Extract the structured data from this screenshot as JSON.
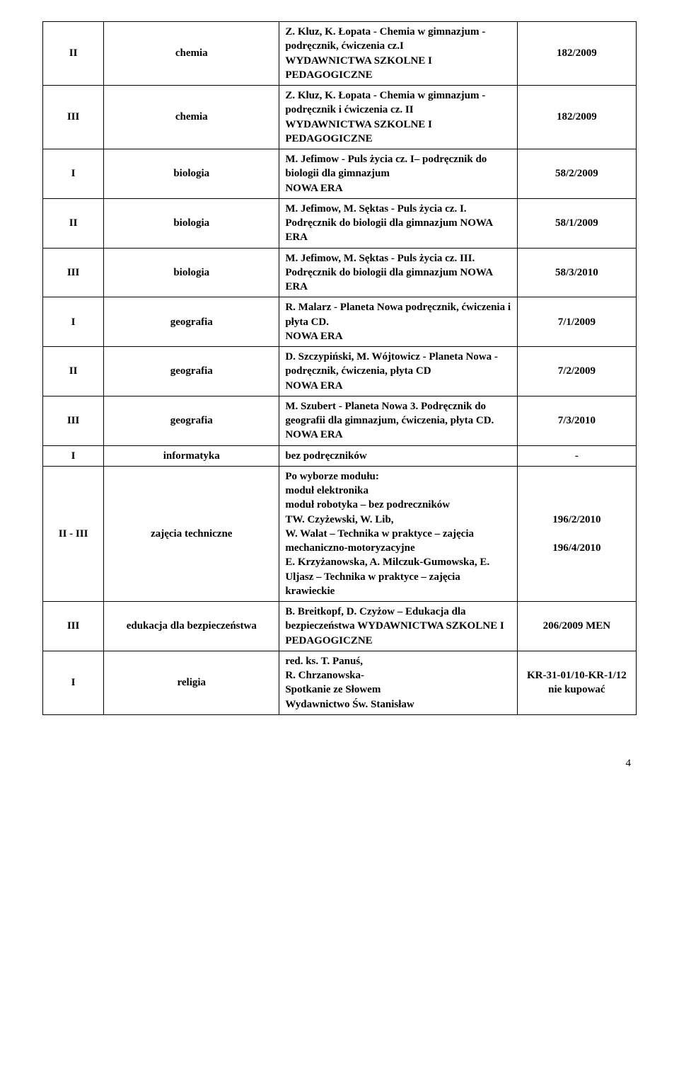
{
  "rows": [
    {
      "c1": "II",
      "c2": "chemia",
      "c3": "Z. Kluz, K. Łopata - Chemia w gimnazjum - podręcznik, ćwiczenia cz.I\nWYDAWNICTWA SZKOLNE I PEDAGOGICZNE",
      "c4": "182/2009"
    },
    {
      "c1": "III",
      "c2": "chemia",
      "c3": "Z. Kluz, K. Łopata - Chemia w gimnazjum - podręcznik i ćwiczenia cz. II\nWYDAWNICTWA SZKOLNE I PEDAGOGICZNE",
      "c4": "182/2009"
    },
    {
      "c1": "I",
      "c2": "biologia",
      "c3": "M. Jefimow - Puls życia cz. I– podręcznik do biologii dla gimnazjum\nNOWA ERA",
      "c4": "58/2/2009"
    },
    {
      "c1": "II",
      "c2": "biologia",
      "c3": "M. Jefimow, M. Sęktas - Puls życia cz. I. Podręcznik do biologii dla gimnazjum NOWA ERA",
      "c4": "58/1/2009"
    },
    {
      "c1": "III",
      "c2": "biologia",
      "c3": "M. Jefimow, M. Sęktas - Puls życia cz. III. Podręcznik do biologii dla gimnazjum NOWA ERA",
      "c4": "58/3/2010"
    },
    {
      "c1": "I",
      "c2": "geografia",
      "c3": "R. Malarz - Planeta Nowa podręcznik, ćwiczenia i płyta CD.\nNOWA ERA",
      "c4": "7/1/2009"
    },
    {
      "c1": "II",
      "c2": "geografia",
      "c3": "D. Szczypiński, M. Wójtowicz - Planeta Nowa - podręcznik, ćwiczenia, płyta CD\nNOWA ERA",
      "c4": "7/2/2009"
    },
    {
      "c1": "III",
      "c2": "geografia",
      "c3": "M. Szubert - Planeta Nowa 3. Podręcznik do geografii dla gimnazjum, ćwiczenia, płyta CD.\nNOWA ERA",
      "c4": "7/3/2010"
    },
    {
      "c1": "I",
      "c2": "informatyka",
      "c3": "bez podręczników",
      "c4": "-"
    },
    {
      "c1": "II - III",
      "c2": "zajęcia techniczne",
      "c3": "Po wyborze modułu:\nmoduł elektronika\nmoduł robotyka – bez podreczników\nTW. Czyżewski, W. Lib,\nW. Walat – Technika w praktyce – zajęcia mechaniczno-motoryzacyjne\nE. Krzyżanowska, A. Milczuk-Gumowska, E. Uljasz – Technika w praktyce – zajęcia krawieckie",
      "c4": "196/2/2010\n\n196/4/2010"
    },
    {
      "c1": "III",
      "c2": "edukacja dla bezpieczeństwa",
      "c3": "B. Breitkopf, D. Czyżow – Edukacja dla bezpieczeństwa WYDAWNICTWA SZKOLNE I PEDAGOGICZNE",
      "c4": "206/2009 MEN"
    },
    {
      "c1": "I",
      "c2": "religia",
      "c3": "red. ks. T. Panuś,\nR. Chrzanowska-\nSpotkanie ze Słowem\nWydawnictwo Św. Stanisław",
      "c4": "KR-31-01/10-KR-1/12\nnie kupować"
    }
  ],
  "pageNumber": "4"
}
